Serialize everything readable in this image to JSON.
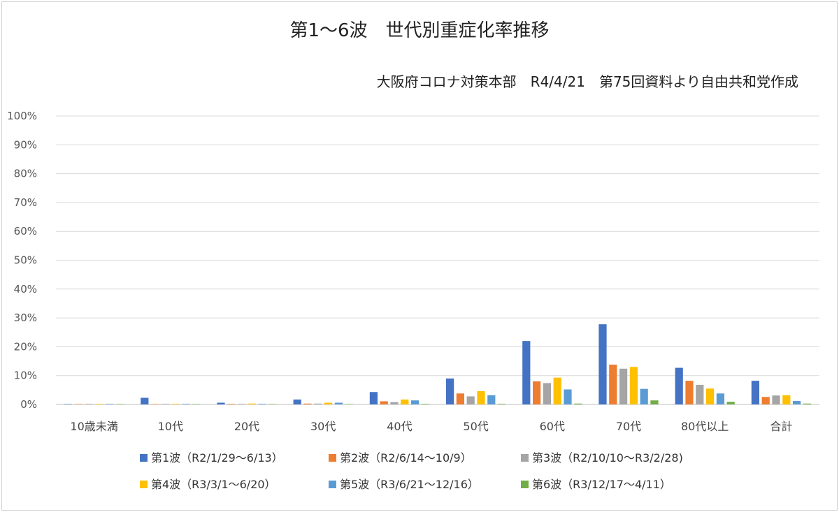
{
  "chart_data": {
    "type": "bar",
    "title": "第1～6波　世代別重症化率推移",
    "subtitle": "大阪府コロナ対策本部　R4/4/21　第75回資料より自由共和党作成",
    "y_ticks": [
      "0%",
      "10%",
      "20%",
      "30%",
      "40%",
      "50%",
      "60%",
      "70%",
      "80%",
      "90%",
      "100%"
    ],
    "ylim": [
      0,
      100
    ],
    "grid": true,
    "legend_position": "bottom",
    "categories": [
      "10歳未満",
      "10代",
      "20代",
      "30代",
      "40代",
      "50代",
      "60代",
      "70代",
      "80代以上",
      "合計"
    ],
    "series": [
      {
        "name": "第1波（R2/1/29～6/13）",
        "color": "#4472C4",
        "values": [
          0,
          2.3,
          0.6,
          1.7,
          4.3,
          9.0,
          22.0,
          27.8,
          12.7,
          8.2
        ]
      },
      {
        "name": "第2波（R2/6/14～10/9）",
        "color": "#ED7D31",
        "values": [
          0,
          0,
          0.2,
          0.3,
          1.1,
          3.8,
          8.0,
          13.8,
          8.2,
          2.6
        ]
      },
      {
        "name": "第3波（R2/10/10～R3/2/28)",
        "color": "#A5A5A5",
        "values": [
          0.2,
          0.1,
          0.2,
          0.3,
          0.8,
          2.8,
          7.4,
          12.4,
          6.8,
          3.1
        ]
      },
      {
        "name": "第4波（R3/3/1～6/20）",
        "color": "#FFC000",
        "values": [
          0.2,
          0.2,
          0.3,
          0.6,
          1.7,
          4.6,
          9.3,
          13.0,
          5.5,
          3.2
        ]
      },
      {
        "name": "第5波（R3/6/21～12/16）",
        "color": "#5B9BD5",
        "values": [
          0.1,
          0.1,
          0.2,
          0.6,
          1.4,
          3.2,
          5.2,
          5.4,
          3.8,
          1.2
        ]
      },
      {
        "name": "第6波（R3/12/17～4/11）",
        "color": "#70AD47",
        "values": [
          0,
          0,
          0,
          0,
          0.1,
          0.2,
          0.3,
          1.4,
          0.9,
          0.3
        ]
      }
    ]
  }
}
